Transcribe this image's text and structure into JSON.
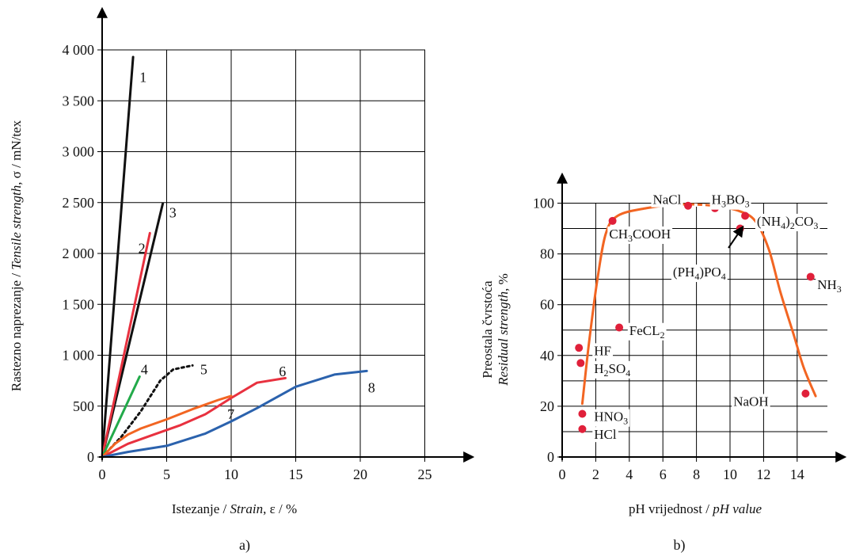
{
  "chart_data": [
    {
      "type": "line",
      "caption": "a)",
      "xlabel": {
        "plain": "Istezanje / ",
        "italic": "Strain",
        "rest": ", ε / %"
      },
      "ylabel": {
        "plain": "Rastezno naprezanje / ",
        "italic": "Tensile strength",
        "rest": ", σ / mN/tex"
      },
      "xlim": [
        0,
        27.5
      ],
      "ylim": [
        0,
        4200
      ],
      "xticks": [
        0,
        5,
        10,
        15,
        20,
        25
      ],
      "xtick_labels": [
        "0",
        "5",
        "10",
        "15",
        "20",
        "25"
      ],
      "yticks": [
        0,
        500,
        1000,
        1500,
        2000,
        2500,
        3000,
        3500,
        4000
      ],
      "ytick_labels": [
        "0",
        "500",
        "1 000",
        "1 500",
        "2 000",
        "2 500",
        "3 000",
        "3 500",
        "4 000"
      ],
      "grid": true,
      "series": [
        {
          "name": "1",
          "color": "#111111",
          "dash": "",
          "points": [
            [
              0,
              0
            ],
            [
              2.4,
              3930
            ]
          ]
        },
        {
          "name": "3",
          "color": "#111111",
          "dash": "",
          "points": [
            [
              0,
              0
            ],
            [
              4.7,
              2490
            ]
          ]
        },
        {
          "name": "2",
          "color": "#e8313f",
          "dash": "",
          "points": [
            [
              0,
              0
            ],
            [
              3.7,
              2200
            ]
          ]
        },
        {
          "name": "4",
          "color": "#22aa4a",
          "dash": "",
          "points": [
            [
              0,
              0
            ],
            [
              2.9,
              790
            ]
          ]
        },
        {
          "name": "5",
          "color": "#111111",
          "dash": "3,4",
          "points": [
            [
              0,
              0
            ],
            [
              1.5,
              200
            ],
            [
              3.0,
              450
            ],
            [
              4.5,
              750
            ],
            [
              5.5,
              860
            ],
            [
              7.0,
              900
            ]
          ]
        },
        {
          "name": "6",
          "color": "#e8313f",
          "dash": "",
          "points": [
            [
              0,
              0
            ],
            [
              2,
              130
            ],
            [
              4,
              220
            ],
            [
              6,
              310
            ],
            [
              8,
              420
            ],
            [
              10,
              580
            ],
            [
              12,
              730
            ],
            [
              14.2,
              775
            ]
          ]
        },
        {
          "name": "7",
          "color": "#f26522",
          "dash": "",
          "points": [
            [
              0,
              0
            ],
            [
              1,
              130
            ],
            [
              2,
              220
            ],
            [
              3,
              280
            ],
            [
              5,
              370
            ],
            [
              7,
              470
            ],
            [
              9,
              560
            ],
            [
              10,
              600
            ]
          ]
        },
        {
          "name": "8",
          "color": "#2b62ad",
          "dash": "",
          "points": [
            [
              0,
              0
            ],
            [
              2,
              50
            ],
            [
              5,
              110
            ],
            [
              8,
              230
            ],
            [
              10,
              350
            ],
            [
              12,
              480
            ],
            [
              15,
              690
            ],
            [
              18,
              810
            ],
            [
              20.5,
              845
            ]
          ]
        }
      ],
      "labels": [
        {
          "text": "1",
          "x": 2.9,
          "y": 3730
        },
        {
          "text": "3",
          "x": 5.2,
          "y": 2400
        },
        {
          "text": "2",
          "x": 2.8,
          "y": 2050
        },
        {
          "text": "4",
          "x": 3.0,
          "y": 860
        },
        {
          "text": "5",
          "x": 7.6,
          "y": 860
        },
        {
          "text": "6",
          "x": 13.7,
          "y": 840
        },
        {
          "text": "7",
          "x": 9.7,
          "y": 420
        },
        {
          "text": "8",
          "x": 20.6,
          "y": 680
        }
      ]
    },
    {
      "type": "scatter",
      "caption": "b)",
      "xlabel": {
        "plain": "pH vrijednost / ",
        "italic": "pH value",
        "rest": ""
      },
      "ylabel_line1": "Preostala čvrstoća",
      "ylabel_line2": {
        "italic": "Residual strength",
        "rest": ", %"
      },
      "xlim": [
        0,
        16.2
      ],
      "ylim": [
        0,
        108
      ],
      "xticks": [
        0,
        2,
        4,
        6,
        8,
        10,
        12,
        14
      ],
      "xtick_labels": [
        "0",
        "2",
        "4",
        "6",
        "8",
        "10",
        "12",
        "14"
      ],
      "yticks": [
        0,
        20,
        40,
        60,
        80,
        100
      ],
      "ytick_labels": [
        "0",
        "20",
        "40",
        "60",
        "80",
        "100"
      ],
      "grid": true,
      "curve_color": "#f26522",
      "point_color": "#e0203a",
      "curve": [
        [
          1.2,
          21
        ],
        [
          1.6,
          45
        ],
        [
          2.1,
          70
        ],
        [
          2.6,
          88
        ],
        [
          3.3,
          95
        ],
        [
          5,
          98
        ],
        [
          7,
          99.5
        ],
        [
          9,
          99
        ],
        [
          10.5,
          97
        ],
        [
          11.5,
          93
        ],
        [
          12.3,
          82
        ],
        [
          13,
          65
        ],
        [
          13.8,
          48
        ],
        [
          14.4,
          35
        ],
        [
          15.1,
          24
        ]
      ],
      "curve_dashed_segment": [
        [
          7.4,
          99.5
        ],
        [
          9.0,
          98.8
        ]
      ],
      "points": [
        {
          "name": "HCl",
          "x": 1.2,
          "y": 11
        },
        {
          "name": "HNO3",
          "x": 1.2,
          "y": 17
        },
        {
          "name": "H2SO4",
          "x": 1.1,
          "y": 37
        },
        {
          "name": "HF",
          "x": 1.0,
          "y": 43
        },
        {
          "name": "FeCL2",
          "x": 3.4,
          "y": 51
        },
        {
          "name": "CH3COOH",
          "x": 3.0,
          "y": 93
        },
        {
          "name": "NaCl",
          "x": 7.5,
          "y": 99
        },
        {
          "name": "H3BO3",
          "x": 9.1,
          "y": 98
        },
        {
          "name": "(PH4)PO4",
          "x": 10.6,
          "y": 90
        },
        {
          "name": "(NH4)2CO3",
          "x": 10.9,
          "y": 95
        },
        {
          "name": "NH3",
          "x": 14.8,
          "y": 71
        },
        {
          "name": "NaOH",
          "x": 14.5,
          "y": 25
        }
      ],
      "labels": [
        {
          "base": "HCl",
          "sub": "",
          "rest": "",
          "x": 1.9,
          "y": 9
        },
        {
          "base": "HNO",
          "sub": "3",
          "rest": "",
          "x": 1.9,
          "y": 16
        },
        {
          "base": "H",
          "sub": "2",
          "rest": "SO",
          "sub2": "4",
          "x": 1.9,
          "y": 35
        },
        {
          "base": "HF",
          "sub": "",
          "rest": "",
          "x": 1.9,
          "y": 42
        },
        {
          "base": "FeCL",
          "sub": "2",
          "rest": "",
          "x": 4.0,
          "y": 50
        },
        {
          "base": "CH",
          "sub": "3",
          "rest": "COOH",
          "x": 2.8,
          "y": 88
        },
        {
          "base": "NaCl",
          "sub": "",
          "rest": "",
          "x": 5.4,
          "y": 101.5
        },
        {
          "base": "H",
          "sub": "3",
          "rest": "BO",
          "sub2": "3",
          "x": 8.9,
          "y": 101.5
        },
        {
          "base": "(NH",
          "sub": "4",
          "rest": ")",
          "sub2": "2",
          "rest2": "CO",
          "sub3": "3",
          "x": 11.6,
          "y": 93
        },
        {
          "base": "(PH",
          "sub": "4",
          "rest": ")PO",
          "sub2": "4",
          "x": 6.6,
          "y": 73
        },
        {
          "base": "NH",
          "sub": "3",
          "rest": "",
          "x": 15.2,
          "y": 68
        },
        {
          "base": "NaOH",
          "sub": "",
          "rest": "",
          "x": 10.2,
          "y": 22
        }
      ]
    }
  ]
}
